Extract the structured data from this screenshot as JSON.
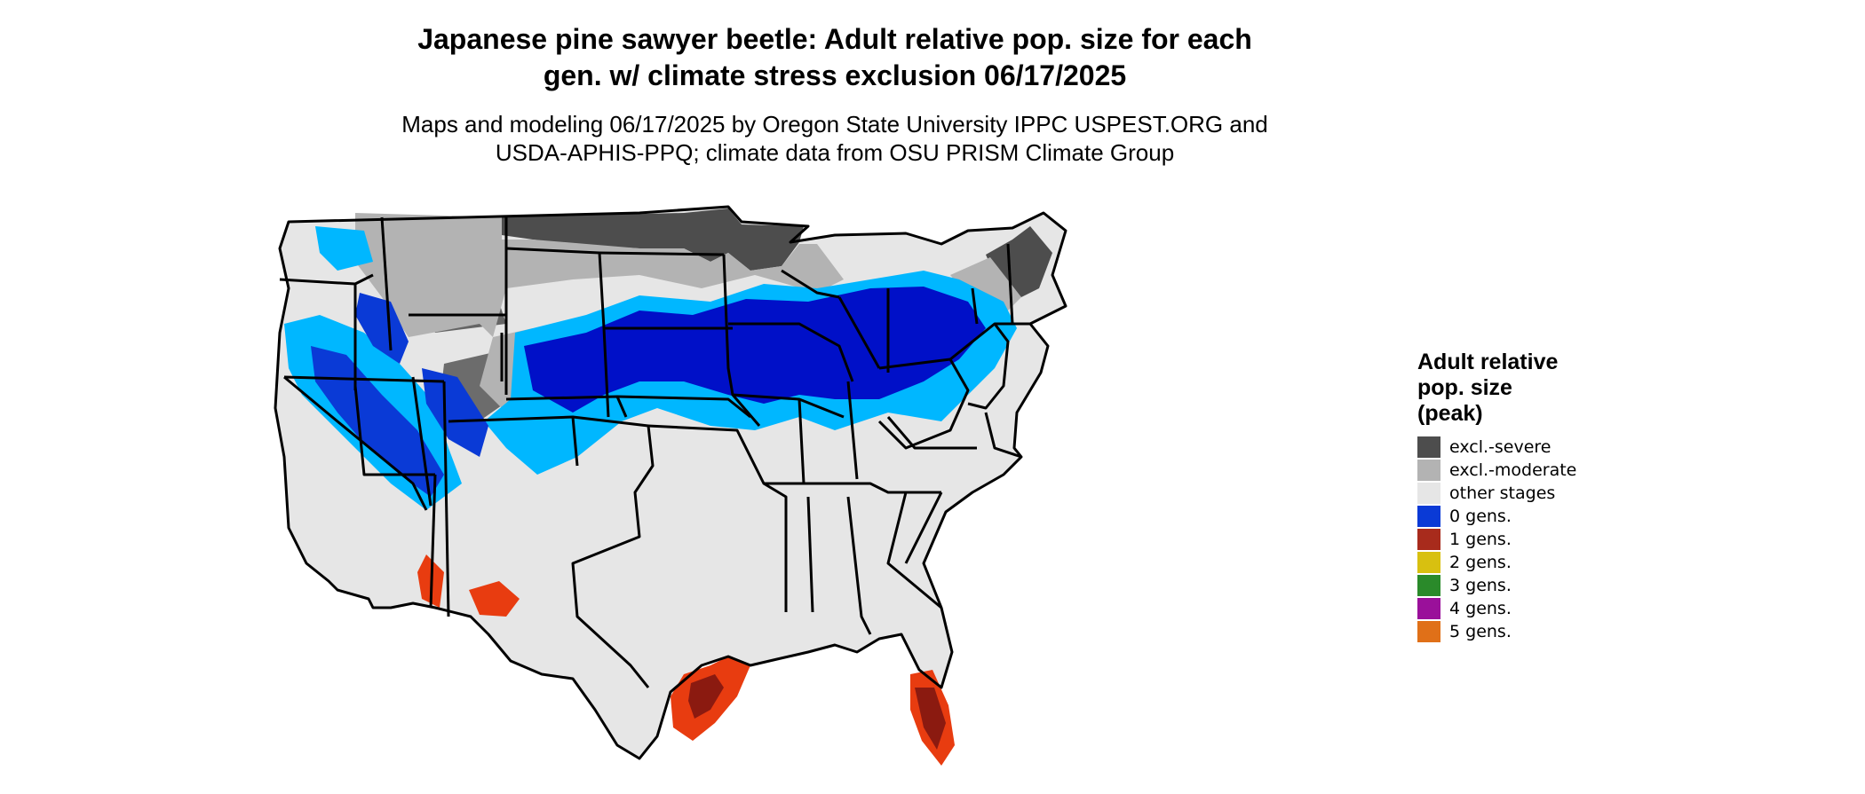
{
  "title_line1": "Japanese pine sawyer beetle: Adult relative pop. size for each",
  "title_line2": "gen. w/ climate stress exclusion 06/17/2025",
  "subtitle_line1": "Maps and modeling 06/17/2025 by Oregon State University IPPC USPEST.ORG and",
  "subtitle_line2": "USDA-APHIS-PPQ; climate data from OSU PRISM Climate Group",
  "legend": {
    "title_line1": "Adult relative",
    "title_line2": "pop. size",
    "title_line3": "(peak)",
    "items": [
      {
        "label": "excl.-severe",
        "color": "#4d4d4d"
      },
      {
        "label": "excl.-moderate",
        "color": "#b3b3b3"
      },
      {
        "label": "other stages",
        "color": "#e6e6e6"
      },
      {
        "label": "0 gens.",
        "color": "#0a3ad6"
      },
      {
        "label": "1 gens.",
        "color": "#a82b1c"
      },
      {
        "label": "2 gens.",
        "color": "#d8c010"
      },
      {
        "label": "3 gens.",
        "color": "#2a8a2a"
      },
      {
        "label": "4 gens.",
        "color": "#9a109a"
      },
      {
        "label": "5 gens.",
        "color": "#e07018"
      }
    ]
  },
  "map_colors": {
    "light_blue": "#00b7ff",
    "blue": "#0a3ad6",
    "deep_blue": "#0010c8",
    "red": "#e83c10",
    "dark_red": "#8b1a10",
    "dark_gray": "#4d4d4d",
    "mid_gray": "#b3b3b3",
    "light_gray": "#e6e6e6",
    "border": "#000000"
  }
}
